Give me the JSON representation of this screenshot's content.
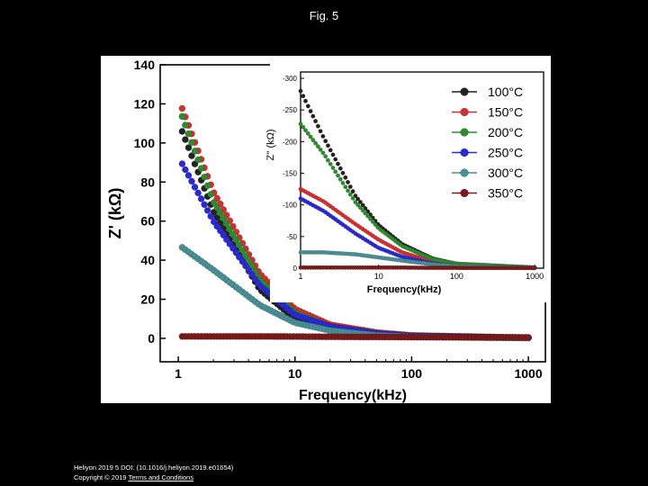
{
  "slide": {
    "title": "Fig. 5"
  },
  "footer": {
    "citation": "Heliyon 2019 5 DOI: (10.1016/j.heliyon.2019.e01654)",
    "copyright": "Copyright © 2019",
    "link_text": "Terms and Conditions"
  },
  "colors": {
    "100": "#222222",
    "150": "#d03030",
    "200": "#2f8a2f",
    "250": "#2a2ad0",
    "300": "#4a8f96",
    "350": "#7a1a1a"
  },
  "chart_data": [
    {
      "type": "scatter",
      "panel": "main",
      "title": "",
      "xlabel": "Frequency(kHz)",
      "ylabel": "Z' (kΩ)",
      "xscale": "log",
      "xlim": [
        0.7,
        1400
      ],
      "ylim": [
        -12,
        140
      ],
      "xticks": [
        "1",
        "10",
        "100",
        "1000"
      ],
      "yticks": [
        "0",
        "20",
        "40",
        "60",
        "80",
        "100",
        "120",
        "140"
      ],
      "series": [
        {
          "name": "100°C",
          "color_key": "100",
          "x": [
            1,
            2,
            5,
            10,
            20,
            50,
            100,
            1000
          ],
          "y": [
            111,
            65,
            25,
            10,
            4,
            1.5,
            0.8,
            0.2
          ]
        },
        {
          "name": "150°C",
          "color_key": "150",
          "x": [
            1,
            2,
            5,
            10,
            20,
            50,
            100,
            1000
          ],
          "y": [
            123,
            75,
            33,
            15,
            7,
            3,
            1.5,
            0.3
          ]
        },
        {
          "name": "200°C",
          "color_key": "200",
          "x": [
            1,
            2,
            5,
            10,
            20,
            50,
            100,
            1000
          ],
          "y": [
            119,
            70,
            30,
            13,
            6,
            2.5,
            1.2,
            0.3
          ]
        },
        {
          "name": "250°C",
          "color_key": "250",
          "x": [
            1,
            2,
            5,
            10,
            20,
            50,
            100,
            1000
          ],
          "y": [
            93,
            60,
            27,
            12,
            6,
            2.5,
            1.2,
            0.3
          ]
        },
        {
          "name": "300°C",
          "color_key": "300",
          "x": [
            1,
            2,
            5,
            10,
            20,
            50,
            100,
            1000
          ],
          "y": [
            48,
            35,
            17,
            8,
            4,
            1.5,
            0.8,
            0.2
          ]
        },
        {
          "name": "350°C",
          "color_key": "350",
          "x": [
            1,
            2,
            5,
            10,
            20,
            50,
            100,
            1000
          ],
          "y": [
            1,
            1,
            1,
            0.9,
            0.8,
            0.7,
            0.6,
            0.5
          ]
        }
      ]
    },
    {
      "type": "scatter",
      "panel": "inset",
      "title": "",
      "xlabel": "Frequency(kHz)",
      "ylabel": "Z'' (kΩ)",
      "xscale": "log",
      "xlim": [
        1,
        1300
      ],
      "ylim": [
        0,
        -310
      ],
      "xticks": [
        "1",
        "10",
        "100",
        "1000"
      ],
      "yticks": [
        "0",
        "-50",
        "-100",
        "-150",
        "-200",
        "-250",
        "-300"
      ],
      "legend": "top-right",
      "series": [
        {
          "name": "100°C",
          "color_key": "100",
          "x": [
            1,
            2,
            5,
            10,
            20,
            50,
            100,
            1000
          ],
          "y": [
            -280,
            -205,
            -115,
            -68,
            -38,
            -15,
            -7,
            -1
          ]
        },
        {
          "name": "150°C",
          "color_key": "150",
          "x": [
            1,
            2,
            5,
            10,
            20,
            50,
            100,
            1000
          ],
          "y": [
            -125,
            -105,
            -70,
            -45,
            -25,
            -10,
            -5,
            -1
          ]
        },
        {
          "name": "200°C",
          "color_key": "200",
          "x": [
            1,
            2,
            5,
            10,
            20,
            50,
            100,
            1000
          ],
          "y": [
            -228,
            -180,
            -105,
            -63,
            -35,
            -14,
            -7,
            -1
          ]
        },
        {
          "name": "250°C",
          "color_key": "250",
          "x": [
            1,
            2,
            5,
            10,
            20,
            50,
            100,
            1000
          ],
          "y": [
            -110,
            -90,
            -55,
            -32,
            -18,
            -7,
            -3,
            -0.5
          ]
        },
        {
          "name": "300°C",
          "color_key": "300",
          "x": [
            1,
            2,
            5,
            10,
            20,
            50,
            100,
            1000
          ],
          "y": [
            -25,
            -25,
            -22,
            -17,
            -12,
            -6,
            -3,
            -0.5
          ]
        },
        {
          "name": "350°C",
          "color_key": "350",
          "x": [
            1,
            2,
            5,
            10,
            20,
            50,
            100,
            1000
          ],
          "y": [
            -1,
            -1,
            -1,
            -1,
            -1,
            -0.5,
            -0.5,
            -0.3
          ]
        }
      ]
    }
  ]
}
